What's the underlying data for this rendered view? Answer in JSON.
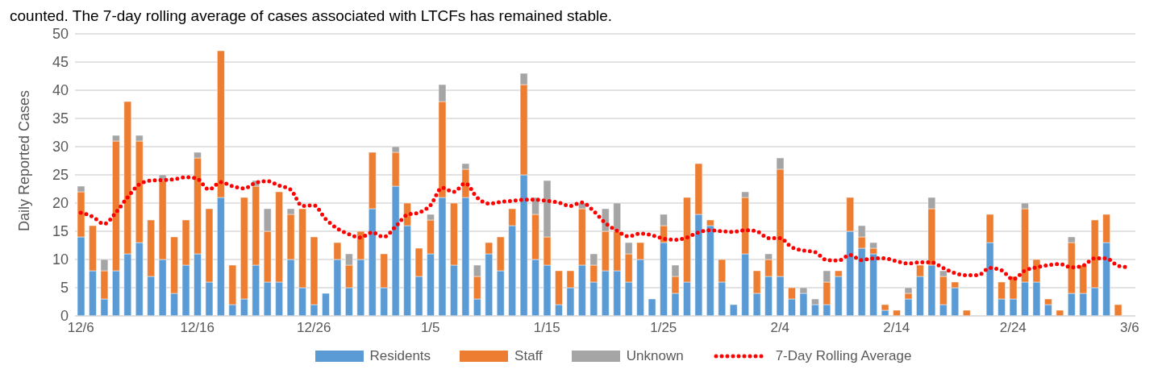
{
  "chart_data": {
    "type": "bar",
    "stacked": true,
    "ylabel": "Daily Reported Cases",
    "annotations": [
      "counted. The 7-day rolling average of cases associated with LTCFs has remained stable."
    ],
    "categories": [
      "12/6",
      null,
      null,
      null,
      null,
      null,
      null,
      null,
      null,
      null,
      "12/16",
      null,
      null,
      null,
      null,
      null,
      null,
      null,
      null,
      null,
      "12/26",
      null,
      null,
      null,
      null,
      null,
      null,
      null,
      null,
      null,
      "1/5",
      null,
      null,
      null,
      null,
      null,
      null,
      null,
      null,
      null,
      "1/15",
      null,
      null,
      null,
      null,
      null,
      null,
      null,
      null,
      null,
      "1/25",
      null,
      null,
      null,
      null,
      null,
      null,
      null,
      null,
      null,
      "2/4",
      null,
      null,
      null,
      null,
      null,
      null,
      null,
      null,
      null,
      "2/14",
      null,
      null,
      null,
      null,
      null,
      null,
      null,
      null,
      null,
      "2/24",
      null,
      null,
      null,
      null,
      null,
      null,
      null,
      null,
      null,
      "3/6"
    ],
    "series": [
      {
        "name": "Residents",
        "color": "#5b9bd5",
        "values": [
          14,
          8,
          3,
          8,
          11,
          13,
          7,
          10,
          4,
          9,
          11,
          6,
          21,
          2,
          3,
          9,
          6,
          6,
          10,
          5,
          2,
          4,
          10,
          5,
          10,
          19,
          5,
          23,
          16,
          7,
          11,
          21,
          9,
          21,
          3,
          11,
          8,
          16,
          25,
          10,
          9,
          2,
          5,
          9,
          6,
          8,
          8,
          6,
          10,
          3,
          13,
          4,
          6,
          18,
          16,
          6,
          2,
          11,
          4,
          7,
          7,
          3,
          4,
          2,
          2,
          7,
          15,
          12,
          11,
          1,
          0,
          3,
          7,
          9,
          2,
          5,
          0,
          0,
          13,
          3,
          3,
          6,
          6,
          2,
          0,
          4,
          4,
          5,
          13,
          0,
          0
        ]
      },
      {
        "name": "Staff",
        "color": "#ed7d31",
        "values": [
          8,
          8,
          5,
          23,
          27,
          18,
          10,
          14,
          10,
          8,
          17,
          13,
          26,
          7,
          18,
          14,
          9,
          16,
          8,
          14,
          12,
          0,
          3,
          4,
          5,
          10,
          6,
          6,
          4,
          5,
          6,
          17,
          11,
          5,
          4,
          2,
          6,
          3,
          16,
          8,
          5,
          6,
          3,
          10,
          3,
          7,
          7,
          5,
          3,
          0,
          3,
          3,
          15,
          9,
          1,
          4,
          0,
          10,
          4,
          3,
          19,
          2,
          0,
          0,
          4,
          1,
          6,
          2,
          1,
          1,
          1,
          1,
          2,
          10,
          5,
          1,
          1,
          0,
          5,
          3,
          4,
          13,
          4,
          1,
          1,
          9,
          5,
          12,
          5,
          2,
          0
        ]
      },
      {
        "name": "Unknown",
        "color": "#a5a5a5",
        "values": [
          1,
          0,
          2,
          1,
          0,
          1,
          0,
          1,
          0,
          0,
          1,
          0,
          0,
          0,
          0,
          1,
          4,
          0,
          1,
          0,
          0,
          0,
          0,
          2,
          0,
          0,
          0,
          1,
          0,
          0,
          1,
          3,
          0,
          1,
          2,
          0,
          0,
          0,
          2,
          3,
          10,
          0,
          0,
          1,
          2,
          4,
          5,
          2,
          0,
          0,
          2,
          2,
          0,
          0,
          0,
          0,
          0,
          1,
          0,
          1,
          2,
          0,
          1,
          1,
          2,
          0,
          0,
          2,
          1,
          0,
          0,
          1,
          0,
          2,
          1,
          0,
          0,
          0,
          0,
          0,
          0,
          1,
          0,
          0,
          0,
          1,
          0,
          0,
          0,
          0,
          0
        ]
      },
      {
        "name": "7-Day Rolling Average",
        "type": "line",
        "color": "#ff0000",
        "line_style": "dotted",
        "marker": "none",
        "values": [
          18.3,
          17.6,
          16.3,
          18.3,
          21,
          23.3,
          24,
          24.1,
          24.2,
          24.6,
          24.3,
          22.4,
          23.7,
          23,
          22.6,
          23.6,
          23.9,
          23.1,
          22.4,
          19.5,
          19.6,
          17.2,
          15.5,
          14.5,
          13.9,
          14.8,
          14,
          15.8,
          17.9,
          18.3,
          19.6,
          22.7,
          22,
          23.5,
          21,
          19.9,
          20.2,
          20.4,
          20.6,
          20.6,
          20.4,
          20.1,
          19.5,
          20.1,
          18.6,
          16.5,
          15.1,
          14.1,
          14.6,
          14.3,
          13.7,
          13.5,
          13.9,
          14.8,
          15.2,
          15,
          14.9,
          15.2,
          15,
          13.8,
          13.8,
          12.2,
          11.6,
          11.3,
          9.9,
          9.8,
          10.8,
          9.9,
          10.2,
          10.2,
          9.7,
          9.3,
          9.5,
          9.5,
          8.5,
          7.6,
          7.2,
          7.2,
          8.5,
          8.1,
          6.5,
          8,
          8.6,
          9,
          9.2,
          8.6,
          8.9,
          10.2,
          10.2,
          8.9,
          8.6
        ]
      }
    ],
    "ylim": [
      0,
      50
    ],
    "yticks": [
      0,
      5,
      10,
      15,
      20,
      25,
      30,
      35,
      40,
      45,
      50
    ],
    "grid": "y",
    "legend": "bottom"
  }
}
